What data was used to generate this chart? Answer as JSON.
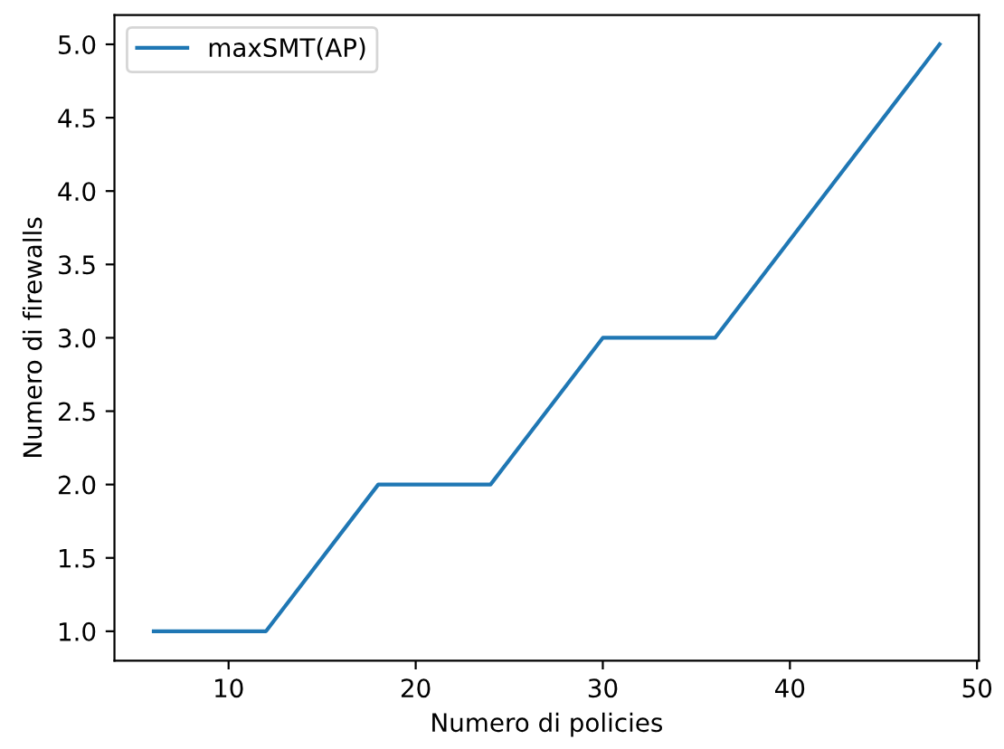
{
  "chart_data": {
    "type": "line",
    "xlabel": "Numero di policies",
    "ylabel": "Numero di firewalls",
    "x": [
      6,
      12,
      18,
      24,
      30,
      36,
      42,
      48
    ],
    "series": [
      {
        "name": "maxSMT(AP)",
        "color": "#1f77b4",
        "values": [
          1,
          1,
          2,
          2,
          3,
          3,
          4,
          5
        ]
      }
    ],
    "xlim": [
      3.9,
      50.1
    ],
    "xticks": [
      10,
      20,
      30,
      40,
      50
    ],
    "ylim": [
      0.8,
      5.2
    ],
    "yticks": [
      {
        "value": 1,
        "label": "1.0"
      },
      {
        "value": 1.5,
        "label": "1.5"
      },
      {
        "value": 2,
        "label": "2.0"
      },
      {
        "value": 2.5,
        "label": "2.5"
      },
      {
        "value": 3,
        "label": "3.0"
      },
      {
        "value": 3.5,
        "label": "3.5"
      },
      {
        "value": 4,
        "label": "4.0"
      },
      {
        "value": 4.5,
        "label": "4.5"
      },
      {
        "value": 5,
        "label": "5.0"
      }
    ],
    "legend": "upper left",
    "grid": false
  }
}
